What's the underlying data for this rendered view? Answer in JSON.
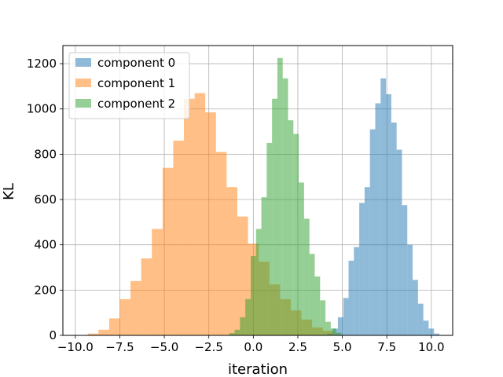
{
  "chart_data": {
    "type": "histogram",
    "xlabel": "iteration",
    "ylabel": "KL",
    "xlim": [
      -10.7,
      11.2
    ],
    "ylim": [
      0,
      1280
    ],
    "xticks": [
      -10.0,
      -7.5,
      -5.0,
      -2.5,
      0.0,
      2.5,
      5.0,
      7.5,
      10.0
    ],
    "xtick_labels": [
      "−10.0",
      "−7.5",
      "−5.0",
      "−2.5",
      "0.0",
      "2.5",
      "5.0",
      "7.5",
      "10.0"
    ],
    "yticks": [
      0,
      200,
      400,
      600,
      800,
      1000,
      1200
    ],
    "ytick_labels": [
      "0",
      "200",
      "400",
      "600",
      "800",
      "1000",
      "1200"
    ],
    "grid": true,
    "legend_position": "top-left",
    "alpha": 0.5,
    "series": [
      {
        "name": "component 0",
        "color": "#1f77b4",
        "bins": [
          {
            "x0": 4.15,
            "x1": 4.45,
            "value": 8
          },
          {
            "x0": 4.45,
            "x1": 4.75,
            "value": 30
          },
          {
            "x0": 4.75,
            "x1": 5.05,
            "value": 80
          },
          {
            "x0": 5.05,
            "x1": 5.35,
            "value": 165
          },
          {
            "x0": 5.35,
            "x1": 5.65,
            "value": 330
          },
          {
            "x0": 5.65,
            "x1": 5.95,
            "value": 390
          },
          {
            "x0": 5.95,
            "x1": 6.25,
            "value": 585
          },
          {
            "x0": 6.25,
            "x1": 6.55,
            "value": 655
          },
          {
            "x0": 6.55,
            "x1": 6.85,
            "value": 910
          },
          {
            "x0": 6.85,
            "x1": 7.15,
            "value": 1025
          },
          {
            "x0": 7.15,
            "x1": 7.45,
            "value": 1135
          },
          {
            "x0": 7.45,
            "x1": 7.75,
            "value": 1065
          },
          {
            "x0": 7.75,
            "x1": 8.05,
            "value": 940
          },
          {
            "x0": 8.05,
            "x1": 8.35,
            "value": 820
          },
          {
            "x0": 8.35,
            "x1": 8.65,
            "value": 575
          },
          {
            "x0": 8.65,
            "x1": 8.95,
            "value": 400
          },
          {
            "x0": 8.95,
            "x1": 9.25,
            "value": 245
          },
          {
            "x0": 9.25,
            "x1": 9.55,
            "value": 140
          },
          {
            "x0": 9.55,
            "x1": 9.85,
            "value": 65
          },
          {
            "x0": 9.85,
            "x1": 10.15,
            "value": 30
          },
          {
            "x0": 10.15,
            "x1": 10.45,
            "value": 8
          }
        ]
      },
      {
        "name": "component 1",
        "color": "#ff7f0e",
        "bins": [
          {
            "x0": -9.3,
            "x1": -8.7,
            "value": 8
          },
          {
            "x0": -8.7,
            "x1": -8.1,
            "value": 25
          },
          {
            "x0": -8.1,
            "x1": -7.5,
            "value": 75
          },
          {
            "x0": -7.5,
            "x1": -6.9,
            "value": 160
          },
          {
            "x0": -6.9,
            "x1": -6.3,
            "value": 240
          },
          {
            "x0": -6.3,
            "x1": -5.7,
            "value": 340
          },
          {
            "x0": -5.7,
            "x1": -5.1,
            "value": 470
          },
          {
            "x0": -5.1,
            "x1": -4.5,
            "value": 740
          },
          {
            "x0": -4.5,
            "x1": -3.9,
            "value": 860
          },
          {
            "x0": -3.9,
            "x1": -3.3,
            "value": 1045
          },
          {
            "x0": -3.3,
            "x1": -2.7,
            "value": 1070
          },
          {
            "x0": -2.7,
            "x1": -2.1,
            "value": 985
          },
          {
            "x0": -2.1,
            "x1": -1.5,
            "value": 810
          },
          {
            "x0": -1.5,
            "x1": -0.9,
            "value": 655
          },
          {
            "x0": -0.9,
            "x1": -0.3,
            "value": 525
          },
          {
            "x0": -0.3,
            "x1": 0.3,
            "value": 405
          },
          {
            "x0": 0.3,
            "x1": 0.9,
            "value": 325
          },
          {
            "x0": 0.9,
            "x1": 1.5,
            "value": 225
          },
          {
            "x0": 1.5,
            "x1": 2.1,
            "value": 160
          },
          {
            "x0": 2.1,
            "x1": 2.7,
            "value": 110
          },
          {
            "x0": 2.7,
            "x1": 3.3,
            "value": 70
          },
          {
            "x0": 3.3,
            "x1": 3.9,
            "value": 35
          },
          {
            "x0": 3.9,
            "x1": 4.5,
            "value": 20
          }
        ]
      },
      {
        "name": "component 2",
        "color": "#2ca02c",
        "bins": [
          {
            "x0": -1.35,
            "x1": -1.05,
            "value": 10
          },
          {
            "x0": -1.05,
            "x1": -0.75,
            "value": 25
          },
          {
            "x0": -0.75,
            "x1": -0.45,
            "value": 80
          },
          {
            "x0": -0.45,
            "x1": -0.15,
            "value": 160
          },
          {
            "x0": -0.15,
            "x1": 0.15,
            "value": 350
          },
          {
            "x0": 0.15,
            "x1": 0.45,
            "value": 470
          },
          {
            "x0": 0.45,
            "x1": 0.75,
            "value": 610
          },
          {
            "x0": 0.75,
            "x1": 1.05,
            "value": 850
          },
          {
            "x0": 1.05,
            "x1": 1.35,
            "value": 1045
          },
          {
            "x0": 1.35,
            "x1": 1.65,
            "value": 1225
          },
          {
            "x0": 1.65,
            "x1": 1.95,
            "value": 1135
          },
          {
            "x0": 1.95,
            "x1": 2.25,
            "value": 950
          },
          {
            "x0": 2.25,
            "x1": 2.55,
            "value": 890
          },
          {
            "x0": 2.55,
            "x1": 2.85,
            "value": 675
          },
          {
            "x0": 2.85,
            "x1": 3.15,
            "value": 515
          },
          {
            "x0": 3.15,
            "x1": 3.45,
            "value": 360
          },
          {
            "x0": 3.45,
            "x1": 3.75,
            "value": 260
          },
          {
            "x0": 3.75,
            "x1": 4.05,
            "value": 155
          },
          {
            "x0": 4.05,
            "x1": 4.35,
            "value": 60
          },
          {
            "x0": 4.35,
            "x1": 4.65,
            "value": 30
          },
          {
            "x0": 4.65,
            "x1": 4.95,
            "value": 12
          }
        ]
      }
    ]
  }
}
